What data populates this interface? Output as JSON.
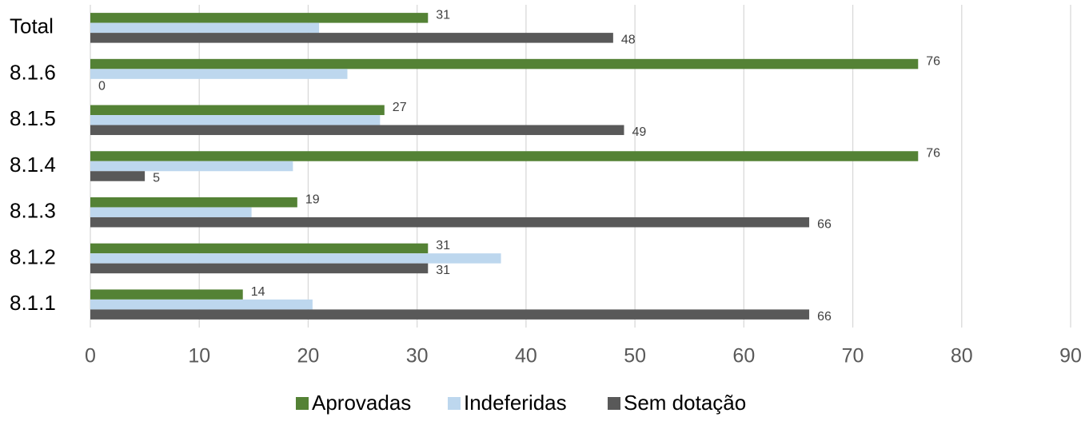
{
  "chart_data": {
    "type": "hbar",
    "categories": [
      "Total",
      "8.1.6",
      "8.1.5",
      "8.1.4",
      "8.1.3",
      "8.1.2",
      "8.1.1"
    ],
    "series": [
      {
        "name": "Aprovadas",
        "color": "#548235",
        "show_labels": true,
        "values": [
          31,
          76,
          27,
          76,
          19,
          31,
          14
        ]
      },
      {
        "name": "Indeferidas",
        "color": "#bdd7ee",
        "show_labels": false,
        "values": [
          21,
          23.6,
          26.6,
          18.6,
          14.8,
          37.7,
          20.4
        ]
      },
      {
        "name": "Sem dotação",
        "color": "#595959",
        "show_labels": true,
        "values": [
          48,
          0,
          49,
          5,
          66,
          31,
          66
        ]
      }
    ],
    "xlim": [
      0,
      90
    ],
    "xticks": [
      0,
      10,
      20,
      30,
      40,
      50,
      60,
      70,
      80,
      90
    ],
    "grid": true,
    "legend": "bottom"
  }
}
